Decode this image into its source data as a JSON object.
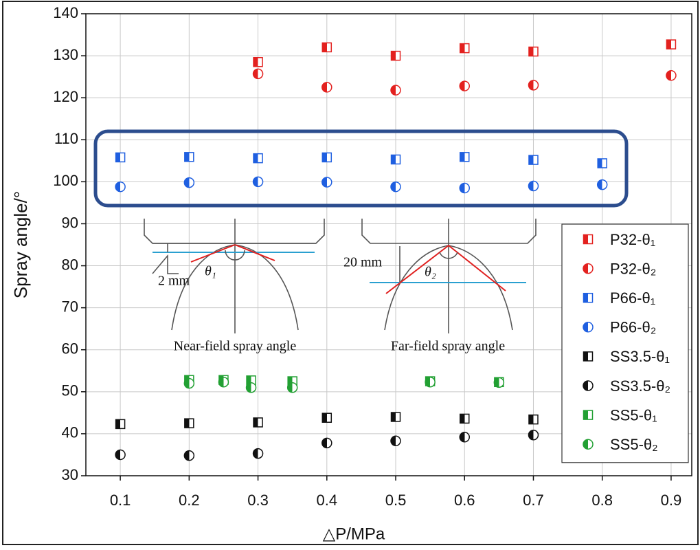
{
  "chart_data": {
    "type": "scatter",
    "x_label": "△P/MPa",
    "y_label": "Spray angle/°",
    "xlim": [
      0.05,
      0.93
    ],
    "ylim": [
      30,
      140
    ],
    "xticks": [
      0.1,
      0.2,
      0.3,
      0.4,
      0.5,
      0.6,
      0.7,
      0.8,
      0.9
    ],
    "yticks": [
      30,
      40,
      50,
      60,
      70,
      80,
      90,
      100,
      110,
      120,
      130,
      140
    ],
    "grid": true,
    "legend_position": "right",
    "annotations": [
      "Near-field spray angle",
      "Far-field spray angle",
      "2 mm",
      "20 mm",
      "θ₁",
      "θ₂"
    ],
    "series": [
      {
        "name": "P32-θ₁",
        "color": "#e3211f",
        "marker": "square",
        "x": [
          0.3,
          0.4,
          0.5,
          0.6,
          0.7,
          0.9
        ],
        "values": [
          128.5,
          132,
          130,
          131.8,
          131,
          132.7
        ]
      },
      {
        "name": "P32-θ₂",
        "color": "#e3211f",
        "marker": "circle",
        "x": [
          0.3,
          0.4,
          0.5,
          0.6,
          0.7,
          0.9
        ],
        "values": [
          125.7,
          122.5,
          121.8,
          122.8,
          123,
          125.3
        ]
      },
      {
        "name": "P66-θ₁",
        "color": "#1f5fe0",
        "marker": "square",
        "x": [
          0.1,
          0.2,
          0.3,
          0.4,
          0.5,
          0.6,
          0.7,
          0.8
        ],
        "values": [
          105.8,
          105.9,
          105.6,
          105.8,
          105.3,
          105.9,
          105.2,
          104.4
        ]
      },
      {
        "name": "P66-θ₂",
        "color": "#1f5fe0",
        "marker": "circle",
        "x": [
          0.1,
          0.2,
          0.3,
          0.4,
          0.5,
          0.6,
          0.7,
          0.8
        ],
        "values": [
          98.8,
          99.8,
          100,
          99.9,
          98.8,
          98.5,
          99,
          99.3
        ]
      },
      {
        "name": "SS3.5-θ₁",
        "color": "#111111",
        "marker": "square",
        "x": [
          0.1,
          0.2,
          0.3,
          0.4,
          0.5,
          0.6,
          0.7
        ],
        "values": [
          42.3,
          42.5,
          42.7,
          43.8,
          44,
          43.6,
          43.4
        ]
      },
      {
        "name": "SS3.5-θ₂",
        "color": "#111111",
        "marker": "circle",
        "x": [
          0.1,
          0.2,
          0.3,
          0.4,
          0.5,
          0.6,
          0.7
        ],
        "values": [
          35,
          34.8,
          35.3,
          37.8,
          38.3,
          39.2,
          39.7
        ]
      },
      {
        "name": "SS5-θ₁",
        "color": "#22a033",
        "marker": "square",
        "x": [
          0.2,
          0.25,
          0.29,
          0.35,
          0.55,
          0.65
        ],
        "values": [
          52.8,
          52.8,
          52.7,
          52.5,
          52.5,
          52.3
        ]
      },
      {
        "name": "SS5-θ₂",
        "color": "#22a033",
        "marker": "circle",
        "x": [
          0.2,
          0.25,
          0.29,
          0.35,
          0.55,
          0.65
        ],
        "values": [
          52,
          52.3,
          51,
          51,
          52.3,
          52.2
        ]
      }
    ]
  }
}
